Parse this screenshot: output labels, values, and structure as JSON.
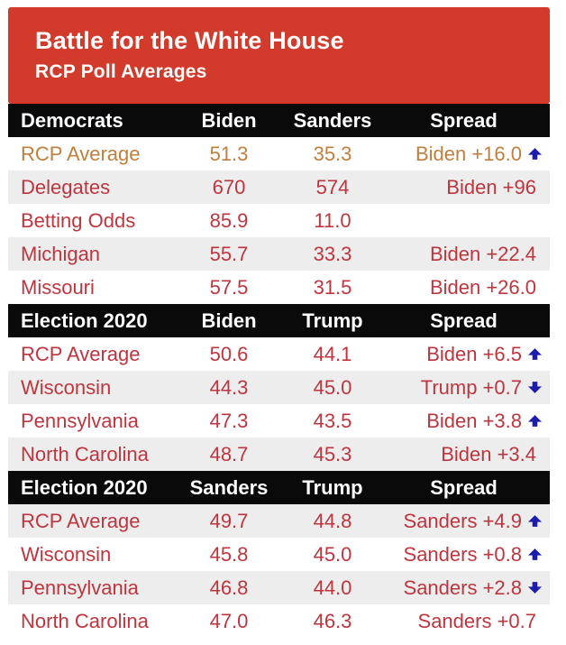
{
  "banner": {
    "title": "Battle for the White House",
    "subtitle": "RCP Poll Averages"
  },
  "colors": {
    "banner_red": "#d23b2c",
    "section_header_black": "#0a0a0a",
    "row_text_red": "#bf353e",
    "rcp_average_gold": "#c07f3c",
    "arrow_blue": "#1c1cb0",
    "stripe_gray": "#ededed"
  },
  "sections": [
    {
      "header": {
        "label": "Democrats",
        "col1": "Biden",
        "col2": "Sanders",
        "col3": "Spread"
      },
      "rows": [
        {
          "label": "RCP Average",
          "v1": "51.3",
          "v2": "35.3",
          "spread": "Biden +16.0",
          "arrow": "up",
          "highlight": true,
          "alt": false
        },
        {
          "label": "Delegates",
          "v1": "670",
          "v2": "574",
          "spread": "Biden +96",
          "arrow": "none",
          "highlight": false,
          "alt": true
        },
        {
          "label": "Betting Odds",
          "v1": "85.9",
          "v2": "11.0",
          "spread": "",
          "arrow": "none",
          "highlight": false,
          "alt": false
        },
        {
          "label": "Michigan",
          "v1": "55.7",
          "v2": "33.3",
          "spread": "Biden +22.4",
          "arrow": "none",
          "highlight": false,
          "alt": true
        },
        {
          "label": "Missouri",
          "v1": "57.5",
          "v2": "31.5",
          "spread": "Biden +26.0",
          "arrow": "none",
          "highlight": false,
          "alt": false
        }
      ]
    },
    {
      "header": {
        "label": "Election 2020",
        "col1": "Biden",
        "col2": "Trump",
        "col3": "Spread"
      },
      "rows": [
        {
          "label": "RCP Average",
          "v1": "50.6",
          "v2": "44.1",
          "spread": "Biden +6.5",
          "arrow": "up",
          "highlight": false,
          "alt": false
        },
        {
          "label": "Wisconsin",
          "v1": "44.3",
          "v2": "45.0",
          "spread": "Trump +0.7",
          "arrow": "down",
          "highlight": false,
          "alt": true
        },
        {
          "label": "Pennsylvania",
          "v1": "47.3",
          "v2": "43.5",
          "spread": "Biden +3.8",
          "arrow": "up",
          "highlight": false,
          "alt": false
        },
        {
          "label": "North Carolina",
          "v1": "48.7",
          "v2": "45.3",
          "spread": "Biden +3.4",
          "arrow": "none",
          "highlight": false,
          "alt": true
        }
      ]
    },
    {
      "header": {
        "label": "Election 2020",
        "col1": "Sanders",
        "col2": "Trump",
        "col3": "Spread"
      },
      "rows": [
        {
          "label": "RCP Average",
          "v1": "49.7",
          "v2": "44.8",
          "spread": "Sanders +4.9",
          "arrow": "up",
          "highlight": false,
          "alt": true
        },
        {
          "label": "Wisconsin",
          "v1": "45.8",
          "v2": "45.0",
          "spread": "Sanders +0.8",
          "arrow": "up",
          "highlight": false,
          "alt": false
        },
        {
          "label": "Pennsylvania",
          "v1": "46.8",
          "v2": "44.0",
          "spread": "Sanders +2.8",
          "arrow": "down",
          "highlight": false,
          "alt": true
        },
        {
          "label": "North Carolina",
          "v1": "47.0",
          "v2": "46.3",
          "spread": "Sanders +0.7",
          "arrow": "none",
          "highlight": false,
          "alt": false
        }
      ]
    }
  ],
  "chart_data": [
    {
      "type": "table",
      "title": "Democrats",
      "columns": [
        "Democrats",
        "Biden",
        "Sanders",
        "Spread"
      ],
      "rows": [
        [
          "RCP Average",
          51.3,
          35.3,
          "Biden +16.0",
          "up"
        ],
        [
          "Delegates",
          670,
          574,
          "Biden +96",
          null
        ],
        [
          "Betting Odds",
          85.9,
          11.0,
          "",
          null
        ],
        [
          "Michigan",
          55.7,
          33.3,
          "Biden +22.4",
          null
        ],
        [
          "Missouri",
          57.5,
          31.5,
          "Biden +26.0",
          null
        ]
      ]
    },
    {
      "type": "table",
      "title": "Election 2020",
      "columns": [
        "Election 2020",
        "Biden",
        "Trump",
        "Spread"
      ],
      "rows": [
        [
          "RCP Average",
          50.6,
          44.1,
          "Biden +6.5",
          "up"
        ],
        [
          "Wisconsin",
          44.3,
          45.0,
          "Trump +0.7",
          "down"
        ],
        [
          "Pennsylvania",
          47.3,
          43.5,
          "Biden +3.8",
          "up"
        ],
        [
          "North Carolina",
          48.7,
          45.3,
          "Biden +3.4",
          null
        ]
      ]
    },
    {
      "type": "table",
      "title": "Election 2020",
      "columns": [
        "Election 2020",
        "Sanders",
        "Trump",
        "Spread"
      ],
      "rows": [
        [
          "RCP Average",
          49.7,
          44.8,
          "Sanders +4.9",
          "up"
        ],
        [
          "Wisconsin",
          45.8,
          45.0,
          "Sanders +0.8",
          "up"
        ],
        [
          "Pennsylvania",
          46.8,
          44.0,
          "Sanders +2.8",
          "down"
        ],
        [
          "North Carolina",
          47.0,
          46.3,
          "Sanders +0.7",
          null
        ]
      ]
    }
  ]
}
